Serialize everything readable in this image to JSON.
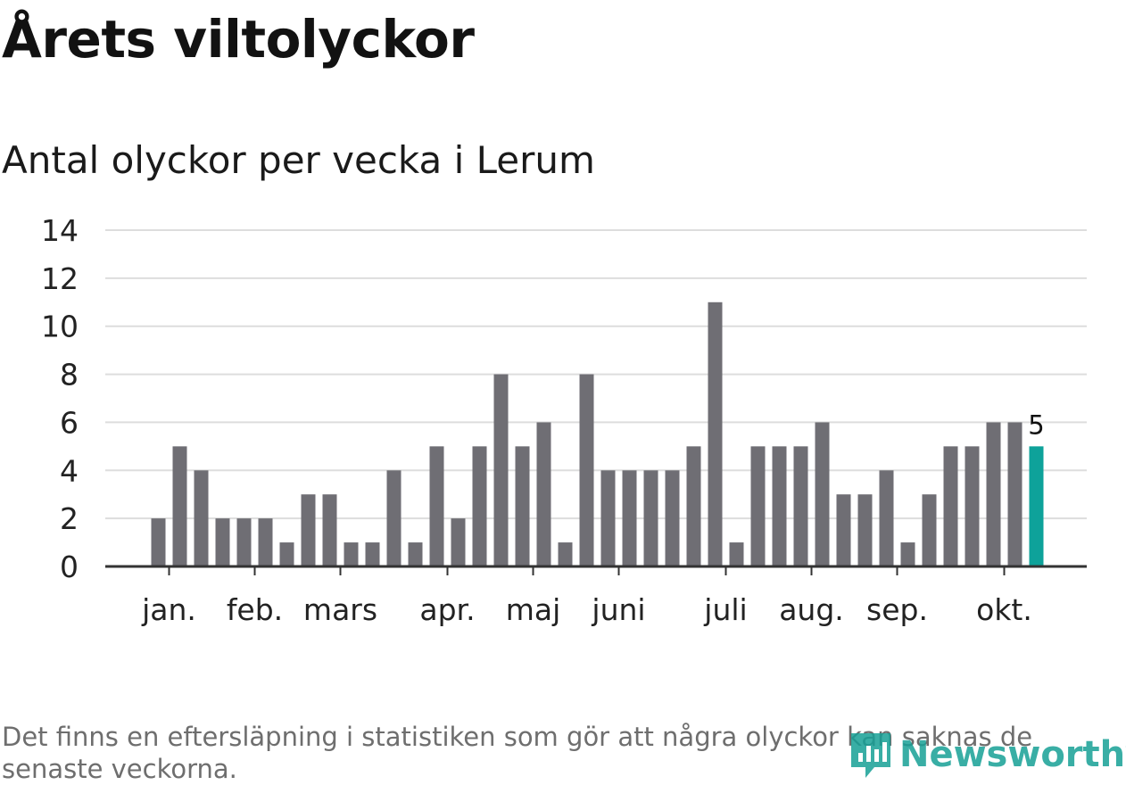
{
  "title": "Årets viltolyckor",
  "subtitle": "Antal olyckor per vecka i Lerum",
  "footnote": "Det finns en eftersläpning i statistiken som gör att några olyckor kan saknas de senaste veckorna.",
  "logo_text": "Newsworthy",
  "colors": {
    "bar": "#6f6e74",
    "highlight": "#0ea29a",
    "grid": "#dddddd",
    "axis": "#333333",
    "text": "#222222"
  },
  "chart_data": {
    "type": "bar",
    "title": "Årets viltolyckor",
    "subtitle": "Antal olyckor per vecka i Lerum",
    "xlabel": "",
    "ylabel": "",
    "ylim": [
      0,
      14
    ],
    "yticks": [
      0,
      2,
      4,
      6,
      8,
      10,
      12,
      14
    ],
    "x": [
      1,
      2,
      3,
      4,
      5,
      6,
      7,
      8,
      9,
      10,
      11,
      12,
      13,
      14,
      15,
      16,
      17,
      18,
      19,
      20,
      21,
      22,
      23,
      24,
      25,
      26,
      27,
      28,
      29,
      30,
      31,
      32,
      33,
      34,
      35,
      36,
      37,
      38,
      39,
      40,
      41,
      42
    ],
    "values": [
      2,
      5,
      4,
      2,
      2,
      2,
      1,
      3,
      3,
      1,
      1,
      4,
      1,
      5,
      2,
      5,
      8,
      5,
      6,
      1,
      8,
      4,
      4,
      4,
      4,
      5,
      11,
      1,
      5,
      5,
      5,
      6,
      3,
      3,
      4,
      1,
      3,
      5,
      5,
      6,
      6,
      5
    ],
    "month_labels": [
      {
        "label": "jan.",
        "week": 1.5
      },
      {
        "label": "feb.",
        "week": 5.5
      },
      {
        "label": "mars",
        "week": 9.5
      },
      {
        "label": "apr.",
        "week": 14.5
      },
      {
        "label": "maj",
        "week": 18.5
      },
      {
        "label": "juni",
        "week": 22.5
      },
      {
        "label": "juli",
        "week": 27.5
      },
      {
        "label": "aug.",
        "week": 31.5
      },
      {
        "label": "sep.",
        "week": 35.5
      },
      {
        "label": "okt.",
        "week": 40.5
      }
    ],
    "highlight_index": 41,
    "highlight_label": "5",
    "grid": true
  }
}
